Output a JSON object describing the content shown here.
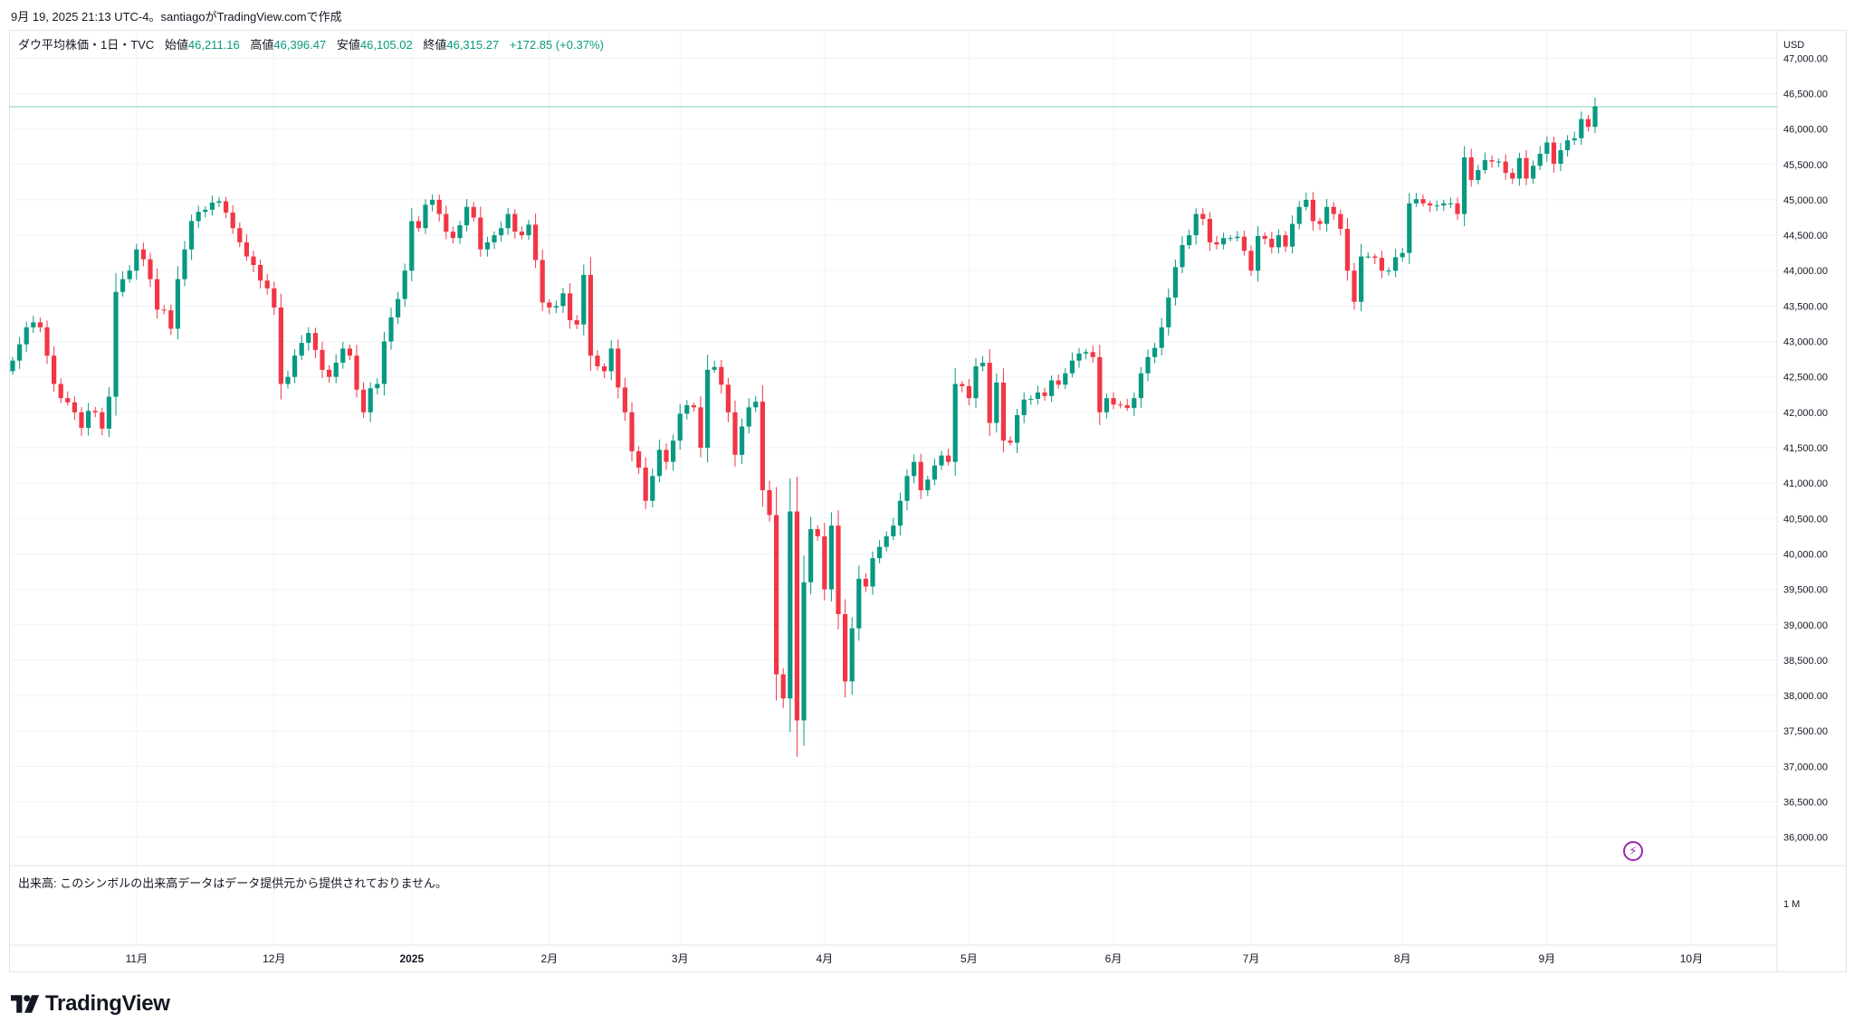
{
  "header": {
    "text": "9月 19, 2025 21:13 UTC-4。santiagoがTradingView.comで作成"
  },
  "legend": {
    "symbol": "ダウ平均株価・1日・TVC",
    "open_label": "始値",
    "open_value": "46,211.16",
    "high_label": "高値",
    "high_value": "46,396.47",
    "low_label": "安値",
    "low_value": "46,105.02",
    "close_label": "終値",
    "close_value": "46,315.27",
    "change": "+172.85 (+0.37%)"
  },
  "volume_note": "出来高: このシンボルの出来高データはデータ提供元から提供されておりません。",
  "brand": {
    "name": "TradingView"
  },
  "colors": {
    "up": "#089981",
    "down": "#f23645",
    "grid": "#f0f3fa",
    "last_price_line": "#089981",
    "flash": "#9c27b0"
  },
  "icons": {
    "flash": "lightning-icon",
    "logo": "tradingview-logo-icon"
  },
  "chart_data": {
    "type": "candlestick",
    "currency": "USD",
    "ylim": [
      35600,
      47400
    ],
    "y_ticks": [
      36000,
      36500,
      37000,
      37500,
      38000,
      38500,
      39000,
      39500,
      40000,
      40500,
      41000,
      41500,
      42000,
      42500,
      43000,
      43500,
      44000,
      44500,
      45000,
      45500,
      46000,
      46500,
      47000
    ],
    "y_tick_labels": [
      "36,000.00",
      "36,500.00",
      "37,000.00",
      "37,500.00",
      "38,000.00",
      "38,500.00",
      "39,000.00",
      "39,500.00",
      "40,000.00",
      "40,500.00",
      "41,000.00",
      "41,500.00",
      "42,000.00",
      "42,500.00",
      "43,000.00",
      "43,500.00",
      "44,000.00",
      "44,500.00",
      "45,000.00",
      "45,500.00",
      "46,000.00",
      "46,500.00",
      "47,000.00"
    ],
    "x_labels": [
      {
        "label": "11月",
        "index": 18
      },
      {
        "label": "12月",
        "index": 38
      },
      {
        "label": "2025",
        "index": 58
      },
      {
        "label": "2月",
        "index": 78
      },
      {
        "label": "3月",
        "index": 97
      },
      {
        "label": "4月",
        "index": 118
      },
      {
        "label": "5月",
        "index": 139
      },
      {
        "label": "6月",
        "index": 160
      },
      {
        "label": "7月",
        "index": 180
      },
      {
        "label": "8月",
        "index": 202
      },
      {
        "label": "9月",
        "index": 223
      },
      {
        "label": "10月",
        "index": 244
      }
    ],
    "volume_axis_label": "1 M",
    "last_price": 46315.27,
    "closes": [
      42730,
      42960,
      43200,
      43270,
      43200,
      42800,
      42400,
      42200,
      42140,
      42000,
      41780,
      42020,
      42000,
      41770,
      42220,
      43700,
      43880,
      44000,
      44300,
      44160,
      43880,
      43450,
      43440,
      43180,
      43880,
      44300,
      44700,
      44830,
      44860,
      44960,
      44980,
      44820,
      44600,
      44400,
      44200,
      44080,
      43860,
      43750,
      43480,
      42400,
      42500,
      42800,
      42980,
      43120,
      42880,
      42600,
      42500,
      42700,
      42900,
      42800,
      42320,
      42000,
      42340,
      42400,
      43000,
      43340,
      43600,
      44000,
      44700,
      44600,
      44930,
      45000,
      44800,
      44550,
      44460,
      44640,
      44900,
      44750,
      44300,
      44400,
      44500,
      44600,
      44800,
      44550,
      44500,
      44650,
      44150,
      43550,
      43480,
      43500,
      43680,
      43300,
      43240,
      43940,
      42800,
      42650,
      42580,
      42900,
      42350,
      42000,
      41450,
      41220,
      40750,
      41100,
      41470,
      41300,
      41600,
      41980,
      42100,
      42070,
      41500,
      42600,
      42640,
      42390,
      42000,
      41400,
      41800,
      42070,
      42150,
      40900,
      40550,
      38300,
      37960,
      40600,
      37650,
      39600,
      40350,
      40250,
      39500,
      40400,
      39150,
      38200,
      38950,
      39650,
      39540,
      39940,
      40100,
      40250,
      40400,
      40750,
      41100,
      41300,
      40900,
      41050,
      41250,
      41390,
      41300,
      42400,
      42370,
      42200,
      42650,
      42700,
      41850,
      42420,
      41600,
      41570,
      41960,
      42180,
      42190,
      42280,
      42230,
      42450,
      42390,
      42550,
      42730,
      42830,
      42850,
      42780,
      42000,
      42200,
      42110,
      42100,
      42060,
      42200,
      42550,
      42780,
      42910,
      43200,
      43620,
      44050,
      44360,
      44500,
      44800,
      44730,
      44400,
      44370,
      44460,
      44460,
      44480,
      44280,
      44000,
      44490,
      44450,
      44330,
      44500,
      44340,
      44660,
      44900,
      45000,
      44700,
      44660,
      44900,
      44800,
      44590,
      44000,
      43560,
      44200,
      44200,
      44180,
      44000,
      44000,
      44190,
      44250,
      44950,
      45010,
      44950,
      44920,
      44920,
      44950,
      44950,
      44800,
      45600,
      45280,
      45420,
      45560,
      45540,
      45540,
      45380,
      45300,
      45590,
      45300,
      45480,
      45650,
      45810,
      45510,
      45700,
      45840,
      45870,
      46140,
      46030,
      46320
    ]
  }
}
